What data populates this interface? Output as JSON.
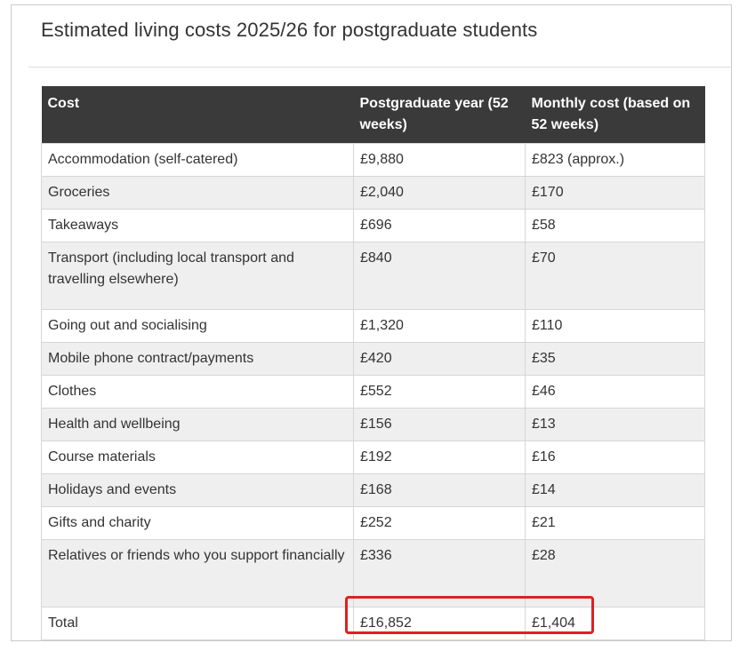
{
  "title": "Estimated living costs 2025/26 for postgraduate students",
  "table": {
    "headers": [
      "Cost",
      "Postgraduate year (52 weeks)",
      "Monthly cost (based on 52 weeks)"
    ],
    "rows": [
      {
        "cost": "Accommodation (self-catered)",
        "year": "£9,880",
        "month": "£823 (approx.)"
      },
      {
        "cost": "Groceries",
        "year": "£2,040",
        "month": "£170"
      },
      {
        "cost": "Takeaways",
        "year": "£696",
        "month": "£58"
      },
      {
        "cost": "Transport (including local transport and travelling elsewhere)",
        "year": "£840",
        "month": "£70"
      },
      {
        "cost": "Going out and socialising",
        "year": "£1,320",
        "month": "£110"
      },
      {
        "cost": "Mobile phone contract/payments",
        "year": "£420",
        "month": "£35"
      },
      {
        "cost": "Clothes",
        "year": "£552",
        "month": "£46"
      },
      {
        "cost": "Health and wellbeing",
        "year": "£156",
        "month": "£13"
      },
      {
        "cost": "Course materials",
        "year": "£192",
        "month": "£16"
      },
      {
        "cost": "Holidays and events",
        "year": "£168",
        "month": "£14"
      },
      {
        "cost": "Gifts and charity",
        "year": "£252",
        "month": "£21"
      },
      {
        "cost": "Relatives or friends who you support financially",
        "year": "£336",
        "month": "£28"
      },
      {
        "cost": "Total",
        "year": "£16,852",
        "month": "£1,404"
      }
    ]
  },
  "colors": {
    "header_bg": "#3a3a3a",
    "row_alt_bg": "#efefef",
    "highlight": "#e02020"
  }
}
